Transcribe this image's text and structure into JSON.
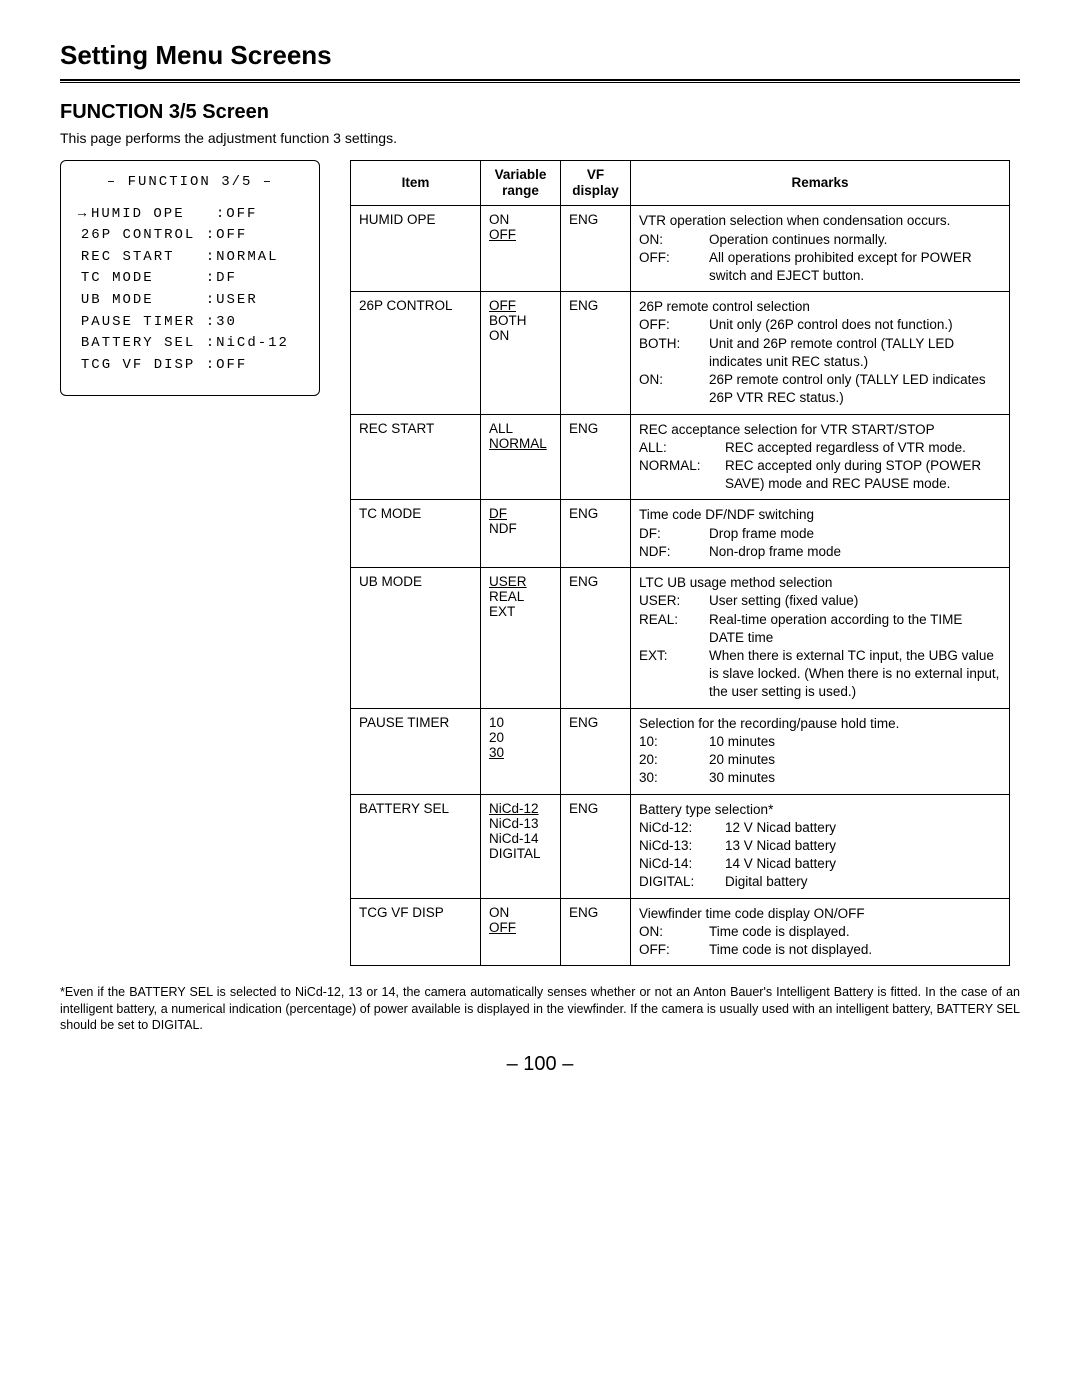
{
  "page": {
    "title": "Setting Menu Screens",
    "section_title": "FUNCTION 3/5 Screen",
    "section_desc": "This page performs the adjustment function 3 settings.",
    "page_number": "– 100 –"
  },
  "menu_box": {
    "header": "– FUNCTION 3/5 –",
    "lines": [
      {
        "arrow": "→",
        "label": "HUMID OPE",
        "value": ":OFF"
      },
      {
        "arrow": " ",
        "label": "26P CONTROL",
        "value": ":OFF"
      },
      {
        "arrow": " ",
        "label": "REC START",
        "value": ":NORMAL"
      },
      {
        "arrow": " ",
        "label": "TC MODE",
        "value": ":DF"
      },
      {
        "arrow": " ",
        "label": "UB MODE",
        "value": ":USER"
      },
      {
        "arrow": " ",
        "label": "PAUSE TIMER",
        "value": ":30"
      },
      {
        "arrow": " ",
        "label": "BATTERY SEL",
        "value": ":NiCd-12"
      },
      {
        "arrow": " ",
        "label": "TCG VF DISP",
        "value": ":OFF"
      }
    ]
  },
  "table": {
    "headers": {
      "item": "Item",
      "range": "Variable\nrange",
      "vf": "VF\ndisplay",
      "remarks": "Remarks"
    },
    "rows": [
      {
        "item": "HUMID OPE",
        "range": [
          {
            "text": "ON",
            "u": false
          },
          {
            "text": "OFF",
            "u": true
          }
        ],
        "vf": "ENG",
        "remarks": {
          "intro": "VTR operation selection when condensation occurs.",
          "kv": [
            {
              "k": "ON:",
              "v": "Operation continues normally."
            },
            {
              "k": "OFF:",
              "v": "All operations prohibited except for POWER switch and EJECT button."
            }
          ]
        }
      },
      {
        "item": "26P CONTROL",
        "range": [
          {
            "text": "OFF",
            "u": true
          },
          {
            "text": "BOTH",
            "u": false
          },
          {
            "text": "ON",
            "u": false
          }
        ],
        "vf": "ENG",
        "remarks": {
          "intro": "26P remote control selection",
          "kv": [
            {
              "k": "OFF:",
              "v": "Unit only (26P control does not function.)"
            },
            {
              "k": "BOTH:",
              "v": "Unit and 26P remote control (TALLY LED indicates unit REC status.)"
            },
            {
              "k": "ON:",
              "v": "26P remote control only (TALLY LED indicates 26P VTR REC status.)"
            }
          ]
        }
      },
      {
        "item": "REC START",
        "range": [
          {
            "text": "ALL",
            "u": false
          },
          {
            "text": "NORMAL",
            "u": true
          }
        ],
        "vf": "ENG",
        "remarks": {
          "intro": "REC acceptance selection for VTR START/STOP",
          "kv_wide": true,
          "kv": [
            {
              "k": "ALL:",
              "v": "REC accepted regardless of VTR mode."
            },
            {
              "k": "NORMAL:",
              "v": "REC accepted only during STOP (POWER SAVE) mode and REC PAUSE mode."
            }
          ]
        }
      },
      {
        "item": "TC MODE",
        "range": [
          {
            "text": "DF",
            "u": true
          },
          {
            "text": "NDF",
            "u": false
          }
        ],
        "vf": "ENG",
        "remarks": {
          "intro": "Time code DF/NDF switching",
          "kv": [
            {
              "k": "DF:",
              "v": "Drop frame mode"
            },
            {
              "k": "NDF:",
              "v": "Non-drop frame mode"
            }
          ]
        }
      },
      {
        "item": "UB MODE",
        "range": [
          {
            "text": "USER",
            "u": true
          },
          {
            "text": "REAL",
            "u": false
          },
          {
            "text": "EXT",
            "u": false
          }
        ],
        "vf": "ENG",
        "remarks": {
          "intro": "LTC UB usage method selection",
          "kv": [
            {
              "k": "USER:",
              "v": "User setting (fixed value)"
            },
            {
              "k": "REAL:",
              "v": "Real-time operation according to the TIME DATE time"
            },
            {
              "k": "EXT:",
              "v": "When there is external TC input, the UBG value is slave locked. (When there is no external input, the user setting is used.)"
            }
          ]
        }
      },
      {
        "item": "PAUSE TIMER",
        "range": [
          {
            "text": "10",
            "u": false
          },
          {
            "text": "20",
            "u": false
          },
          {
            "text": "30",
            "u": true
          }
        ],
        "vf": "ENG",
        "remarks": {
          "intro": "Selection for the recording/pause hold time.",
          "kv": [
            {
              "k": "10:",
              "v": "10 minutes"
            },
            {
              "k": "20:",
              "v": "20 minutes"
            },
            {
              "k": "30:",
              "v": "30 minutes"
            }
          ]
        }
      },
      {
        "item": "BATTERY SEL",
        "range": [
          {
            "text": "NiCd-12",
            "u": true
          },
          {
            "text": "NiCd-13",
            "u": false
          },
          {
            "text": "NiCd-14",
            "u": false
          },
          {
            "text": "DIGITAL",
            "u": false
          }
        ],
        "vf": "ENG",
        "remarks": {
          "intro": "Battery type selection*",
          "kv_wide": true,
          "kv": [
            {
              "k": "NiCd-12:",
              "v": "12 V Nicad battery"
            },
            {
              "k": "NiCd-13:",
              "v": "13 V Nicad battery"
            },
            {
              "k": "NiCd-14:",
              "v": "14 V Nicad battery"
            },
            {
              "k": "DIGITAL:",
              "v": "Digital battery"
            }
          ]
        }
      },
      {
        "item": "TCG VF DISP",
        "range": [
          {
            "text": "ON",
            "u": false
          },
          {
            "text": "OFF",
            "u": true
          }
        ],
        "vf": "ENG",
        "remarks": {
          "intro": "Viewfinder time code display ON/OFF",
          "kv": [
            {
              "k": "ON:",
              "v": "Time code is displayed."
            },
            {
              "k": "OFF:",
              "v": "Time code is not displayed."
            }
          ]
        }
      }
    ]
  },
  "footnote": "*Even if the BATTERY SEL is selected to NiCd-12, 13 or 14, the camera automatically senses whether or not an Anton Bauer's Intelligent Battery is fitted. In the case of an intelligent battery, a numerical indication (percentage) of power available is displayed in the viewfinder. If the camera is usually used with an intelligent battery, BATTERY SEL should be set to DIGITAL."
}
